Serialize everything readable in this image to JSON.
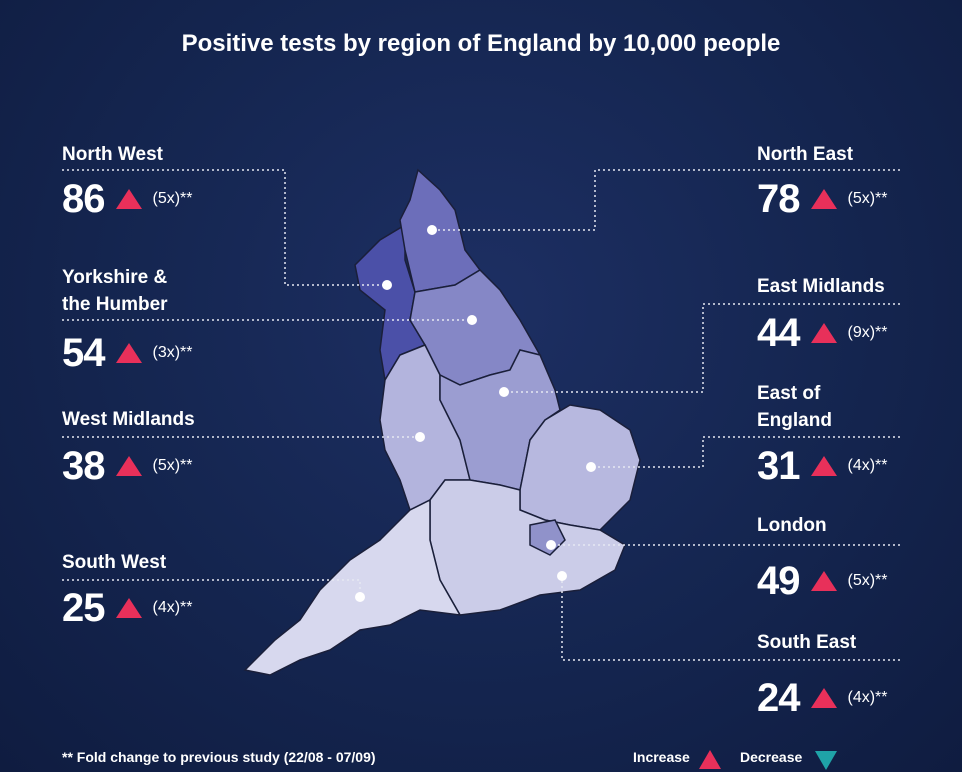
{
  "title": "Positive tests by region of England by 10,000 people",
  "regions": [
    {
      "name": "North West",
      "value": 86,
      "fold": "(5x)**",
      "color": "#4b50a8"
    },
    {
      "name": "Yorkshire & the Humber",
      "value": 54,
      "fold": "(3x)**",
      "color": "#8587c6"
    },
    {
      "name": "West Midlands",
      "value": 38,
      "fold": "(5x)**",
      "color": "#b3b4dd"
    },
    {
      "name": "South West",
      "value": 25,
      "fold": "(4x)**",
      "color": "#d7d8ee"
    },
    {
      "name": "North East",
      "value": 78,
      "fold": "(5x)**",
      "color": "#6c6eba"
    },
    {
      "name": "East Midlands",
      "value": 44,
      "fold": "(9x)**",
      "color": "#9b9dd1"
    },
    {
      "name": "East of England",
      "value": 31,
      "fold": "(4x)**",
      "color": "#b7b8df"
    },
    {
      "name": "London",
      "value": 49,
      "fold": "(5x)**",
      "color": "#9092ca"
    },
    {
      "name": "South East",
      "value": 24,
      "fold": "(4x)**",
      "color": "#cbcce8"
    }
  ],
  "footnote": "** Fold change to previous study (22/08 - 07/09)",
  "legend": {
    "increase": "Increase",
    "decrease": "Decrease",
    "increase_color": "#e8305a",
    "decrease_color": "#1fa3a8"
  }
}
